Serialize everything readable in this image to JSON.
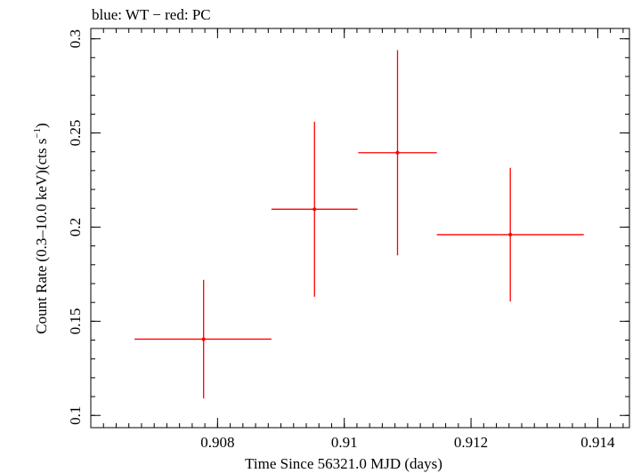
{
  "chart_data": {
    "type": "scatter",
    "title": "blue: WT − red: PC",
    "xlabel": "Time Since 56321.0 MJD (days)",
    "ylabel_main": "Count Rate (0.3–10.0 keV)(cts s",
    "ylabel_sup": "−1",
    "ylabel_close": ")",
    "xlim": [
      0.906,
      0.9145
    ],
    "ylim": [
      0.0935,
      0.3055
    ],
    "x_ticks": [
      {
        "value": 0.908,
        "label": "0.908"
      },
      {
        "value": 0.91,
        "label": "0.91"
      },
      {
        "value": 0.912,
        "label": "0.912"
      },
      {
        "value": 0.914,
        "label": "0.914"
      }
    ],
    "x_minor_step": 0.0002,
    "y_ticks": [
      {
        "value": 0.1,
        "label": "0.1"
      },
      {
        "value": 0.15,
        "label": "0.15"
      },
      {
        "value": 0.2,
        "label": "0.2"
      },
      {
        "value": 0.25,
        "label": "0.25"
      },
      {
        "value": 0.3,
        "label": "0.3"
      }
    ],
    "y_minor_step": 0.01,
    "series": [
      {
        "color": "#ff0000",
        "points": [
          {
            "x": 0.90778,
            "y": 0.1405,
            "xerr_lo": 0.00109,
            "xerr_hi": 0.00107,
            "yerr_lo": 0.0315,
            "yerr_hi": 0.0315
          },
          {
            "x": 0.90953,
            "y": 0.2095,
            "xerr_lo": 0.00068,
            "xerr_hi": 0.00068,
            "yerr_lo": 0.0465,
            "yerr_hi": 0.0465
          },
          {
            "x": 0.91084,
            "y": 0.2395,
            "xerr_lo": 0.00062,
            "xerr_hi": 0.00062,
            "yerr_lo": 0.0545,
            "yerr_hi": 0.0545
          },
          {
            "x": 0.91262,
            "y": 0.196,
            "xerr_lo": 0.00116,
            "xerr_hi": 0.00116,
            "yerr_lo": 0.0355,
            "yerr_hi": 0.0355
          }
        ]
      }
    ]
  }
}
